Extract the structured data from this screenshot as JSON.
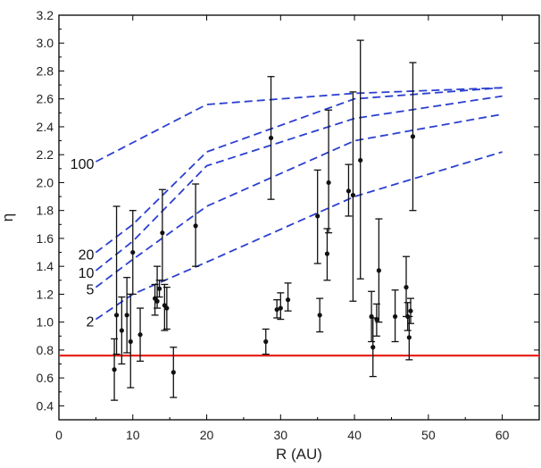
{
  "chart_data": {
    "type": "scatter",
    "title": "",
    "xlabel": "R (AU)",
    "ylabel": "η",
    "xlim": [
      0,
      65
    ],
    "ylim": [
      0.3,
      3.2
    ],
    "xticks": [
      0,
      10,
      20,
      30,
      40,
      50,
      60
    ],
    "yticks": [
      0.4,
      0.6,
      0.8,
      1.0,
      1.2,
      1.4,
      1.6,
      1.8,
      2.0,
      2.2,
      2.4,
      2.6,
      2.8,
      3.0,
      3.2
    ],
    "grid": false,
    "reference_line": {
      "y": 0.76,
      "color": "#e8231e"
    },
    "points": [
      {
        "x": 7.5,
        "y": 0.66,
        "lo": 0.44,
        "hi": 0.88
      },
      {
        "x": 7.8,
        "y": 1.05,
        "lo": 0.77,
        "hi": 1.83
      },
      {
        "x": 8.5,
        "y": 0.94,
        "lo": 0.7,
        "hi": 1.18
      },
      {
        "x": 9.2,
        "y": 1.05,
        "lo": 0.78,
        "hi": 1.32
      },
      {
        "x": 9.7,
        "y": 0.86,
        "lo": 0.53,
        "hi": 1.2
      },
      {
        "x": 10.0,
        "y": 1.5,
        "lo": 1.2,
        "hi": 1.8
      },
      {
        "x": 11.0,
        "y": 0.91,
        "lo": 0.72,
        "hi": 1.1
      },
      {
        "x": 13.0,
        "y": 1.17,
        "lo": 1.05,
        "hi": 1.27
      },
      {
        "x": 13.3,
        "y": 1.15,
        "lo": 1.1,
        "hi": 1.4
      },
      {
        "x": 13.6,
        "y": 1.24,
        "lo": 1.18,
        "hi": 1.3
      },
      {
        "x": 14.0,
        "y": 1.64,
        "lo": 1.3,
        "hi": 1.95
      },
      {
        "x": 14.3,
        "y": 1.12,
        "lo": 0.94,
        "hi": 1.27
      },
      {
        "x": 14.6,
        "y": 1.1,
        "lo": 0.95,
        "hi": 1.25
      },
      {
        "x": 15.5,
        "y": 0.64,
        "lo": 0.46,
        "hi": 0.82
      },
      {
        "x": 18.5,
        "y": 1.69,
        "lo": 1.4,
        "hi": 1.99
      },
      {
        "x": 28.0,
        "y": 0.86,
        "lo": 0.77,
        "hi": 0.95
      },
      {
        "x": 28.7,
        "y": 2.32,
        "lo": 1.88,
        "hi": 2.76
      },
      {
        "x": 29.5,
        "y": 1.09,
        "lo": 1.03,
        "hi": 1.16
      },
      {
        "x": 30.0,
        "y": 1.1,
        "lo": 1.02,
        "hi": 1.21
      },
      {
        "x": 31.0,
        "y": 1.16,
        "lo": 1.08,
        "hi": 1.28
      },
      {
        "x": 35.0,
        "y": 1.76,
        "lo": 1.42,
        "hi": 2.09
      },
      {
        "x": 35.3,
        "y": 1.05,
        "lo": 0.93,
        "hi": 1.17
      },
      {
        "x": 36.3,
        "y": 1.49,
        "lo": 1.3,
        "hi": 1.67
      },
      {
        "x": 36.5,
        "y": 2.0,
        "lo": 1.64,
        "hi": 2.52
      },
      {
        "x": 39.2,
        "y": 1.94,
        "lo": 1.76,
        "hi": 2.13
      },
      {
        "x": 39.8,
        "y": 1.91,
        "lo": 1.15,
        "hi": 2.65
      },
      {
        "x": 40.8,
        "y": 2.16,
        "lo": 1.31,
        "hi": 3.02
      },
      {
        "x": 42.3,
        "y": 1.04,
        "lo": 0.86,
        "hi": 1.22
      },
      {
        "x": 42.5,
        "y": 0.82,
        "lo": 0.61,
        "hi": 1.03
      },
      {
        "x": 43.0,
        "y": 1.02,
        "lo": 0.9,
        "hi": 1.13
      },
      {
        "x": 43.3,
        "y": 1.37,
        "lo": 1.0,
        "hi": 1.74
      },
      {
        "x": 45.5,
        "y": 1.04,
        "lo": 0.86,
        "hi": 1.23
      },
      {
        "x": 47.0,
        "y": 1.25,
        "lo": 1.04,
        "hi": 1.47
      },
      {
        "x": 47.2,
        "y": 1.04,
        "lo": 0.94,
        "hi": 1.14
      },
      {
        "x": 47.4,
        "y": 0.89,
        "lo": 0.73,
        "hi": 1.04
      },
      {
        "x": 47.6,
        "y": 1.08,
        "lo": 0.99,
        "hi": 1.17
      },
      {
        "x": 47.9,
        "y": 2.33,
        "lo": 1.8,
        "hi": 2.86
      }
    ],
    "series": [
      {
        "name": "100",
        "color": "#2b3fd0",
        "x": [
          5,
          20,
          40,
          60
        ],
        "y": [
          2.15,
          2.56,
          2.64,
          2.68
        ]
      },
      {
        "name": "20",
        "color": "#2b3fd0",
        "x": [
          5,
          10,
          20,
          40,
          60
        ],
        "y": [
          1.5,
          1.7,
          2.22,
          2.6,
          2.68
        ]
      },
      {
        "name": "10",
        "color": "#2b3fd0",
        "x": [
          5,
          10,
          20,
          40,
          60
        ],
        "y": [
          1.37,
          1.58,
          2.12,
          2.46,
          2.62
        ]
      },
      {
        "name": "5",
        "color": "#2b3fd0",
        "x": [
          5,
          10,
          20,
          40,
          60
        ],
        "y": [
          1.25,
          1.45,
          1.83,
          2.3,
          2.49
        ]
      },
      {
        "name": "2",
        "color": "#2b3fd0",
        "x": [
          5,
          10,
          20,
          40,
          60
        ],
        "y": [
          1.02,
          1.2,
          1.43,
          1.9,
          2.22
        ]
      }
    ]
  }
}
